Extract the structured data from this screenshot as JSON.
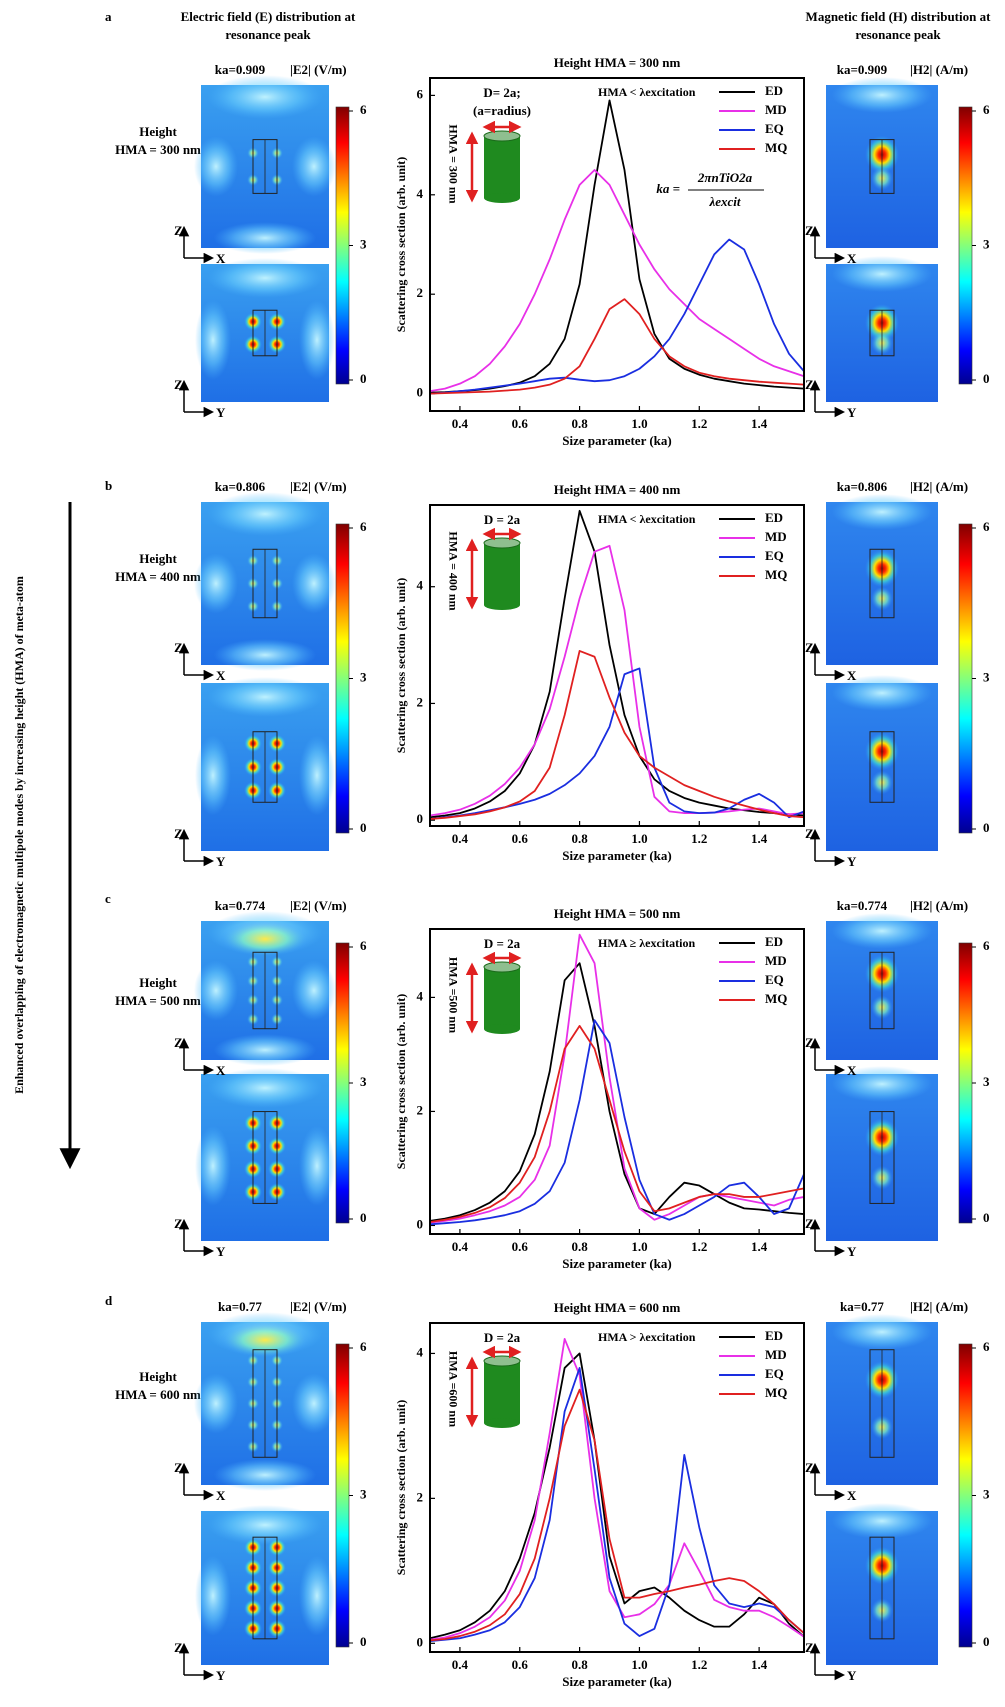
{
  "figure": {
    "headers": {
      "electric": [
        "Electric field (E) distribution at",
        "resonance peak"
      ],
      "magnetic": [
        "Magnetic field (H) distribution at",
        "resonance peak"
      ]
    },
    "side_note": "Enhanced overlapping of electromagnetic multipole modes by increasing height (HMA) of meta-atom",
    "rows": [
      {
        "panel": "a",
        "height_label": [
          "Height",
          "HMA = 300 nm"
        ],
        "e_field": {
          "ka": "ka=0.909",
          "quantity": "|E2|  (V/m)",
          "clim": [
            0,
            6
          ],
          "colorbar_ticks": [
            6,
            3,
            0
          ],
          "axes": [
            "Z",
            "X",
            "Z",
            "Y"
          ]
        },
        "h_field": {
          "ka": "ka=0.909",
          "quantity": "|H2| (A/m)",
          "clim": [
            0,
            6
          ],
          "colorbar_ticks": [
            6,
            3,
            0
          ],
          "axes": [
            "Z",
            "X",
            "Z",
            "Y"
          ]
        }
      },
      {
        "panel": "b",
        "height_label": [
          "Height",
          "HMA = 400 nm"
        ],
        "e_field": {
          "ka": "ka=0.806",
          "quantity": "|E2|  (V/m)",
          "clim": [
            0,
            6
          ],
          "colorbar_ticks": [
            6,
            3,
            0
          ],
          "axes": [
            "Z",
            "X",
            "Z",
            "Y"
          ]
        },
        "h_field": {
          "ka": "ka=0.806",
          "quantity": "|H2| (A/m)",
          "clim": [
            0,
            6
          ],
          "colorbar_ticks": [
            6,
            3,
            0
          ],
          "axes": [
            "Z",
            "X",
            "Z",
            "Y"
          ]
        }
      },
      {
        "panel": "c",
        "height_label": [
          "Height",
          "HMA = 500 nm"
        ],
        "e_field": {
          "ka": "ka=0.774",
          "quantity": "|E2|  (V/m)",
          "clim": [
            0,
            6
          ],
          "colorbar_ticks": [
            6,
            3,
            0
          ],
          "axes": [
            "Z",
            "X",
            "Z",
            "Y"
          ]
        },
        "h_field": {
          "ka": "ka=0.774",
          "quantity": "|H2| (A/m)",
          "clim": [
            0,
            6
          ],
          "colorbar_ticks": [
            6,
            3,
            0
          ],
          "axes": [
            "Z",
            "X",
            "Z",
            "Y"
          ]
        }
      },
      {
        "panel": "d",
        "height_label": [
          "Height",
          "HMA = 600 nm"
        ],
        "e_field": {
          "ka": "ka=0.77",
          "quantity": "|E2|  (V/m)",
          "clim": [
            0,
            6
          ],
          "colorbar_ticks": [
            6,
            3,
            0
          ],
          "axes": [
            "Z",
            "X",
            "Z",
            "Y"
          ]
        },
        "h_field": {
          "ka": "ka=0.77",
          "quantity": "|H2| (A/m)",
          "clim": [
            0,
            6
          ],
          "colorbar_ticks": [
            6,
            3,
            0
          ],
          "axes": [
            "Z",
            "X",
            "Z",
            "Y"
          ]
        }
      }
    ]
  },
  "chart_data": [
    {
      "type": "line",
      "title": "Height HMA = 300 nm",
      "x_label": "Size parameter (ka)",
      "y_label": "Scattering cross section (arb. unit)",
      "xlim": [
        0.3,
        1.55
      ],
      "ylim": [
        -0.35,
        6.35
      ],
      "xticks": [
        0.4,
        0.6,
        0.8,
        {
          "value": 1,
          "label": "1.0"
        },
        1.2,
        1.4
      ],
      "yticks": [
        0,
        2,
        4,
        6
      ],
      "legend": "upper right",
      "annotations": {
        "condition": "HMA < λexcitation",
        "diameter": "D= 2a;",
        "radius_note": "(a=radius)",
        "height": "HMA = 300 nm",
        "formula": {
          "lhs": "ka =",
          "numerator": "2πnTiO2a",
          "denominator": "λexcit"
        }
      },
      "x": [
        0.3,
        0.35,
        0.4,
        0.45,
        0.5,
        0.55,
        0.6,
        0.65,
        0.7,
        0.75,
        0.8,
        0.85,
        0.9,
        0.95,
        1,
        1.05,
        1.1,
        1.15,
        1.2,
        1.25,
        1.3,
        1.35,
        1.4,
        1.45,
        1.5,
        1.55
      ],
      "series": [
        {
          "name": "ED",
          "color": "#000000",
          "values": [
            0.02,
            0.03,
            0.05,
            0.07,
            0.1,
            0.15,
            0.22,
            0.35,
            0.6,
            1.1,
            2.2,
            4.2,
            5.9,
            4.5,
            2.3,
            1.2,
            0.7,
            0.5,
            0.38,
            0.3,
            0.25,
            0.2,
            0.17,
            0.14,
            0.12,
            0.1
          ]
        },
        {
          "name": "MD",
          "color": "#e830e8",
          "values": [
            0.05,
            0.1,
            0.2,
            0.35,
            0.6,
            0.95,
            1.4,
            2.0,
            2.7,
            3.5,
            4.2,
            4.5,
            4.2,
            3.6,
            3.0,
            2.5,
            2.1,
            1.8,
            1.5,
            1.3,
            1.1,
            0.9,
            0.7,
            0.55,
            0.45,
            0.35
          ]
        },
        {
          "name": "EQ",
          "color": "#1a2ee0",
          "values": [
            0.0,
            0.02,
            0.05,
            0.08,
            0.12,
            0.16,
            0.2,
            0.25,
            0.3,
            0.32,
            0.28,
            0.25,
            0.27,
            0.35,
            0.5,
            0.75,
            1.1,
            1.6,
            2.2,
            2.8,
            3.1,
            2.9,
            2.2,
            1.4,
            0.8,
            0.45
          ]
        },
        {
          "name": "MQ",
          "color": "#e02020",
          "values": [
            0.0,
            0.01,
            0.02,
            0.03,
            0.04,
            0.06,
            0.08,
            0.12,
            0.18,
            0.3,
            0.55,
            1.1,
            1.7,
            1.9,
            1.6,
            1.1,
            0.75,
            0.55,
            0.42,
            0.35,
            0.3,
            0.27,
            0.24,
            0.22,
            0.2,
            0.18
          ]
        }
      ]
    },
    {
      "type": "line",
      "title": "Height HMA = 400 nm",
      "x_label": "Size parameter (ka)",
      "y_label": "Scattering cross section (arb. unit)",
      "xlim": [
        0.3,
        1.55
      ],
      "ylim": [
        -0.1,
        5.4
      ],
      "xticks": [
        0.4,
        0.6,
        0.8,
        {
          "value": 1,
          "label": "1.0"
        },
        1.2,
        1.4
      ],
      "yticks": [
        0,
        2,
        4
      ],
      "legend": "upper right",
      "annotations": {
        "condition": "HMA < λexcitation",
        "diameter": "D = 2a",
        "height": "HMA = 400 nm"
      },
      "x": [
        0.3,
        0.35,
        0.4,
        0.45,
        0.5,
        0.55,
        0.6,
        0.65,
        0.7,
        0.75,
        0.8,
        0.85,
        0.9,
        0.95,
        1,
        1.05,
        1.1,
        1.15,
        1.2,
        1.25,
        1.3,
        1.35,
        1.4,
        1.45,
        1.5,
        1.55
      ],
      "series": [
        {
          "name": "ED",
          "color": "#000000",
          "values": [
            0.05,
            0.08,
            0.12,
            0.2,
            0.32,
            0.5,
            0.8,
            1.3,
            2.2,
            3.8,
            5.3,
            4.6,
            3.0,
            1.8,
            1.1,
            0.7,
            0.5,
            0.38,
            0.3,
            0.25,
            0.2,
            0.17,
            0.14,
            0.12,
            0.1,
            0.08
          ]
        },
        {
          "name": "MD",
          "color": "#e830e8",
          "values": [
            0.08,
            0.12,
            0.18,
            0.28,
            0.42,
            0.62,
            0.9,
            1.3,
            1.9,
            2.8,
            3.8,
            4.6,
            4.7,
            3.6,
            1.6,
            0.4,
            0.15,
            0.12,
            0.12,
            0.13,
            0.15,
            0.18,
            0.2,
            0.15,
            0.1,
            0.12
          ]
        },
        {
          "name": "EQ",
          "color": "#1a2ee0",
          "values": [
            0.02,
            0.05,
            0.08,
            0.12,
            0.17,
            0.22,
            0.28,
            0.35,
            0.45,
            0.6,
            0.8,
            1.1,
            1.6,
            2.5,
            2.6,
            0.9,
            0.3,
            0.15,
            0.12,
            0.13,
            0.2,
            0.35,
            0.45,
            0.3,
            0.05,
            0.15
          ]
        },
        {
          "name": "MQ",
          "color": "#e02020",
          "values": [
            0.02,
            0.04,
            0.07,
            0.1,
            0.15,
            0.22,
            0.32,
            0.5,
            0.9,
            1.8,
            2.9,
            2.8,
            2.1,
            1.5,
            1.1,
            0.9,
            0.75,
            0.6,
            0.5,
            0.4,
            0.32,
            0.25,
            0.18,
            0.12,
            0.07,
            0.05
          ]
        }
      ]
    },
    {
      "type": "line",
      "title": "Height HMA = 500 nm",
      "x_label": "Size parameter (ka)",
      "y_label": "Scattering cross section (arb. unit)",
      "xlim": [
        0.3,
        1.55
      ],
      "ylim": [
        -0.15,
        5.2
      ],
      "xticks": [
        0.4,
        0.6,
        0.8,
        {
          "value": 1,
          "label": "1.0"
        },
        1.2,
        1.4
      ],
      "yticks": [
        0,
        2,
        4
      ],
      "legend": "upper right",
      "annotations": {
        "condition": "HMA ≥ λexcitation",
        "diameter": "D = 2a",
        "height": "HMA =500 nm"
      },
      "x": [
        0.3,
        0.35,
        0.4,
        0.45,
        0.5,
        0.55,
        0.6,
        0.65,
        0.7,
        0.75,
        0.8,
        0.85,
        0.9,
        0.95,
        1,
        1.05,
        1.1,
        1.15,
        1.2,
        1.25,
        1.3,
        1.35,
        1.4,
        1.45,
        1.5,
        1.55
      ],
      "series": [
        {
          "name": "ED",
          "color": "#000000",
          "values": [
            0.08,
            0.12,
            0.18,
            0.27,
            0.4,
            0.6,
            0.95,
            1.6,
            2.7,
            4.3,
            4.6,
            3.5,
            2.0,
            0.9,
            0.3,
            0.2,
            0.5,
            0.75,
            0.7,
            0.55,
            0.4,
            0.3,
            0.28,
            0.25,
            0.22,
            0.2
          ]
        },
        {
          "name": "MD",
          "color": "#e830e8",
          "values": [
            0.05,
            0.08,
            0.12,
            0.18,
            0.25,
            0.35,
            0.5,
            0.8,
            1.4,
            3.0,
            5.1,
            4.6,
            2.6,
            1.0,
            0.3,
            0.1,
            0.2,
            0.35,
            0.5,
            0.55,
            0.5,
            0.45,
            0.4,
            0.35,
            0.45,
            0.5
          ]
        },
        {
          "name": "EQ",
          "color": "#1a2ee0",
          "values": [
            0.02,
            0.04,
            0.06,
            0.09,
            0.13,
            0.18,
            0.25,
            0.38,
            0.6,
            1.1,
            2.2,
            3.6,
            3.2,
            1.9,
            0.8,
            0.2,
            0.1,
            0.2,
            0.35,
            0.5,
            0.7,
            0.75,
            0.5,
            0.2,
            0.3,
            0.9
          ]
        },
        {
          "name": "MQ",
          "color": "#e02020",
          "values": [
            0.06,
            0.1,
            0.15,
            0.22,
            0.32,
            0.48,
            0.75,
            1.2,
            2.0,
            3.1,
            3.5,
            3.1,
            2.2,
            1.3,
            0.6,
            0.25,
            0.3,
            0.4,
            0.5,
            0.55,
            0.55,
            0.5,
            0.5,
            0.55,
            0.6,
            0.65
          ]
        }
      ]
    },
    {
      "type": "line",
      "title": "Height HMA = 600 nm",
      "x_label": "Size parameter (ka)",
      "y_label": "Scattering cross section (arb. unit)",
      "xlim": [
        0.3,
        1.55
      ],
      "ylim": [
        -0.12,
        4.42
      ],
      "xticks": [
        0.4,
        0.6,
        0.8,
        {
          "value": 1,
          "label": "1.0"
        },
        1.2,
        1.4
      ],
      "yticks": [
        0,
        2,
        4
      ],
      "legend": "upper right",
      "annotations": {
        "condition": "HMA > λexcitation",
        "diameter": "D = 2a",
        "height": "HMA =600 nm"
      },
      "x": [
        0.3,
        0.35,
        0.4,
        0.45,
        0.5,
        0.55,
        0.6,
        0.65,
        0.7,
        0.75,
        0.8,
        0.85,
        0.9,
        0.95,
        1,
        1.05,
        1.1,
        1.15,
        1.2,
        1.25,
        1.3,
        1.35,
        1.4,
        1.45,
        1.5,
        1.55
      ],
      "series": [
        {
          "name": "ED",
          "color": "#000000",
          "values": [
            0.07,
            0.12,
            0.18,
            0.29,
            0.45,
            0.72,
            1.17,
            1.8,
            2.7,
            3.8,
            4.0,
            2.8,
            1.2,
            0.55,
            0.72,
            0.77,
            0.63,
            0.45,
            0.32,
            0.23,
            0.23,
            0.4,
            0.63,
            0.54,
            0.27,
            0.09
          ]
        },
        {
          "name": "MD",
          "color": "#e830e8",
          "values": [
            0.05,
            0.08,
            0.14,
            0.23,
            0.36,
            0.59,
            1.0,
            1.7,
            2.9,
            4.2,
            3.7,
            2.0,
            0.72,
            0.36,
            0.4,
            0.54,
            0.81,
            1.38,
            1.0,
            0.6,
            0.5,
            0.45,
            0.45,
            0.36,
            0.23,
            0.09
          ]
        },
        {
          "name": "EQ",
          "color": "#1a2ee0",
          "values": [
            0.03,
            0.05,
            0.07,
            0.12,
            0.18,
            0.29,
            0.5,
            0.9,
            1.7,
            3.2,
            3.8,
            2.4,
            0.9,
            0.27,
            0.1,
            0.2,
            0.8,
            2.6,
            1.6,
            0.8,
            0.55,
            0.5,
            0.55,
            0.5,
            0.32,
            0.14
          ]
        },
        {
          "name": "MQ",
          "color": "#e02020",
          "values": [
            0.04,
            0.06,
            0.1,
            0.16,
            0.25,
            0.4,
            0.68,
            1.17,
            2.0,
            3.0,
            3.5,
            2.8,
            1.44,
            0.63,
            0.63,
            0.68,
            0.72,
            0.77,
            0.81,
            0.86,
            0.9,
            0.86,
            0.72,
            0.54,
            0.32,
            0.14
          ]
        }
      ]
    }
  ]
}
